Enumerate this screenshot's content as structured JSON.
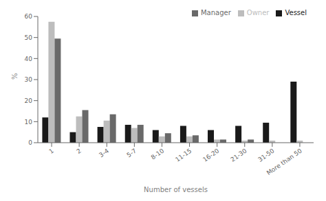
{
  "chart_data": {
    "type": "bar",
    "categories": [
      "1",
      "2",
      "3-4",
      "5-7",
      "8-10",
      "11-15",
      "16-20",
      "21-30",
      "31-50",
      "More than  50"
    ],
    "series": [
      {
        "name": "Vessel",
        "color": "#1a1a1a",
        "values": [
          12,
          5,
          7.5,
          8.5,
          6,
          8,
          6,
          8,
          9.5,
          29
        ]
      },
      {
        "name": "Owner",
        "color": "#bdbdbd",
        "values": [
          57.5,
          12.5,
          10.5,
          7,
          3,
          3,
          1.5,
          1,
          1,
          1
        ]
      },
      {
        "name": "Manager",
        "color": "#696969",
        "values": [
          49.5,
          15.5,
          13.5,
          8.5,
          4.5,
          3.5,
          1.5,
          1.5,
          0,
          0
        ]
      }
    ],
    "xlabel": "Number of vessels",
    "ylabel": "%",
    "ylim": [
      0,
      60
    ],
    "yticks": [
      0,
      10,
      20,
      30,
      40,
      50,
      60
    ],
    "legend": "upper right",
    "grid": false
  }
}
